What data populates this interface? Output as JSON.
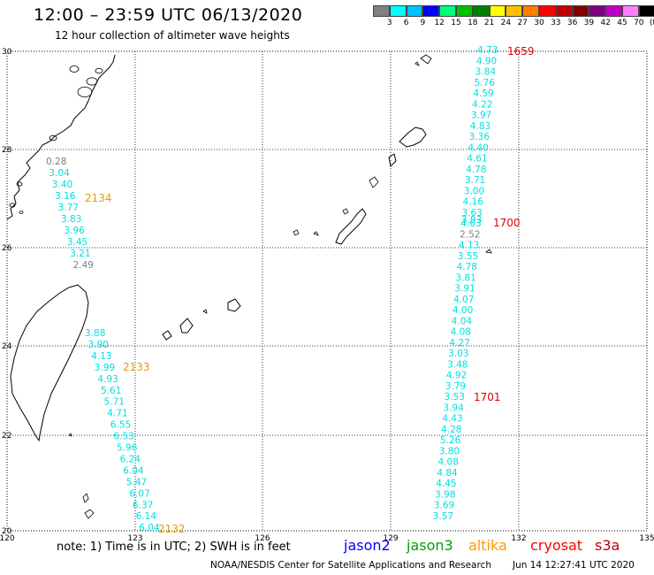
{
  "header": {
    "title": "12:00 – 23:59 UTC 06/13/2020",
    "subtitle": "12 hour collection of altimeter wave heights"
  },
  "legend": {
    "colors": [
      "#808080",
      "#00ffff",
      "#00c0ff",
      "#0000ff",
      "#00ff80",
      "#00c000",
      "#008000",
      "#ffff00",
      "#ffc000",
      "#ff8000",
      "#ff0000",
      "#c00000",
      "#800000",
      "#800080",
      "#c000c0",
      "#ff80ff",
      "#000000"
    ],
    "labels": [
      "3",
      "6",
      "9",
      "12",
      "15",
      "18",
      "21",
      "24",
      "27",
      "30",
      "33",
      "36",
      "39",
      "42",
      "45",
      "70",
      "(ft)"
    ]
  },
  "axes": {
    "lon_ticks": [
      "120",
      "123",
      "126",
      "129",
      "132",
      "135"
    ],
    "lat_ticks": [
      "30",
      "28",
      "26",
      "24",
      "22",
      "20"
    ]
  },
  "colors": {
    "cyan": "#00e0e0",
    "gray": "#808080",
    "orange": "#e89a00",
    "red": "#e00000"
  },
  "tracks": [
    {
      "name": "track-west-north",
      "time": "2134",
      "time_color": "orange",
      "points": [
        {
          "v": "0.28",
          "c": "gray"
        },
        {
          "v": "3.04",
          "c": "cyan"
        },
        {
          "v": "3.40",
          "c": "cyan"
        },
        {
          "v": "3.16",
          "c": "cyan"
        },
        {
          "v": "3.77",
          "c": "cyan"
        },
        {
          "v": "3.83",
          "c": "cyan"
        },
        {
          "v": "3.96",
          "c": "cyan"
        },
        {
          "v": "3.45",
          "c": "cyan"
        },
        {
          "v": "3.21",
          "c": "cyan"
        },
        {
          "v": "2.49",
          "c": "gray"
        }
      ]
    },
    {
      "name": "track-west-south",
      "time1": "2133",
      "time2": "2132",
      "time_color": "orange",
      "points": [
        {
          "v": "3.88",
          "c": "cyan"
        },
        {
          "v": "3.90",
          "c": "cyan"
        },
        {
          "v": "4.13",
          "c": "cyan"
        },
        {
          "v": "3.99",
          "c": "cyan"
        },
        {
          "v": "4.93",
          "c": "cyan"
        },
        {
          "v": "5.61",
          "c": "cyan"
        },
        {
          "v": "5.71",
          "c": "cyan"
        },
        {
          "v": "4.71",
          "c": "cyan"
        },
        {
          "v": "6.55",
          "c": "cyan"
        },
        {
          "v": "6.53",
          "c": "cyan"
        },
        {
          "v": "5.96",
          "c": "cyan"
        },
        {
          "v": "6.24",
          "c": "cyan"
        },
        {
          "v": "6.04",
          "c": "cyan"
        },
        {
          "v": "5.47",
          "c": "cyan"
        },
        {
          "v": "6.07",
          "c": "cyan"
        },
        {
          "v": "6.37",
          "c": "cyan"
        },
        {
          "v": "6.14",
          "c": "cyan"
        },
        {
          "v": "6.04",
          "c": "cyan"
        }
      ]
    },
    {
      "name": "track-east",
      "time1": "1659",
      "time2": "1700",
      "time3": "1701",
      "time_color": "red",
      "points": [
        {
          "v": "4.73",
          "c": "cyan"
        },
        {
          "v": "4.90",
          "c": "cyan"
        },
        {
          "v": "3.84",
          "c": "cyan"
        },
        {
          "v": "5.76",
          "c": "cyan"
        },
        {
          "v": "4.59",
          "c": "cyan"
        },
        {
          "v": "4.22",
          "c": "cyan"
        },
        {
          "v": "3.97",
          "c": "cyan"
        },
        {
          "v": "4.83",
          "c": "cyan"
        },
        {
          "v": "3.36",
          "c": "cyan"
        },
        {
          "v": "4.40",
          "c": "cyan"
        },
        {
          "v": "4.61",
          "c": "cyan"
        },
        {
          "v": "4.78",
          "c": "cyan"
        },
        {
          "v": "3.71",
          "c": "cyan"
        },
        {
          "v": "3.00",
          "c": "cyan"
        },
        {
          "v": "4.16",
          "c": "cyan"
        },
        {
          "v": "3.63",
          "c": "cyan"
        },
        {
          "v": "4.63",
          "c": "cyan"
        },
        {
          "v": "2.52",
          "c": "gray"
        },
        {
          "v": "4.13",
          "c": "cyan"
        },
        {
          "v": "3.55",
          "c": "cyan"
        },
        {
          "v": "4.78",
          "c": "cyan"
        },
        {
          "v": "3.81",
          "c": "cyan"
        },
        {
          "v": "3.91",
          "c": "cyan"
        },
        {
          "v": "4.07",
          "c": "cyan"
        },
        {
          "v": "4.00",
          "c": "cyan"
        },
        {
          "v": "4.04",
          "c": "cyan"
        },
        {
          "v": "4.08",
          "c": "cyan"
        },
        {
          "v": "4.27",
          "c": "cyan"
        },
        {
          "v": "3.03",
          "c": "cyan"
        },
        {
          "v": "3.48",
          "c": "cyan"
        },
        {
          "v": "4.92",
          "c": "cyan"
        },
        {
          "v": "3.79",
          "c": "cyan"
        },
        {
          "v": "3.53",
          "c": "cyan"
        },
        {
          "v": "3.94",
          "c": "cyan"
        },
        {
          "v": "4.43",
          "c": "cyan"
        },
        {
          "v": "4.28",
          "c": "cyan"
        },
        {
          "v": "5.26",
          "c": "cyan"
        },
        {
          "v": "3.80",
          "c": "cyan"
        },
        {
          "v": "4.08",
          "c": "cyan"
        },
        {
          "v": "4.84",
          "c": "cyan"
        },
        {
          "v": "4.45",
          "c": "cyan"
        },
        {
          "v": "3.98",
          "c": "cyan"
        },
        {
          "v": "3.69",
          "c": "cyan"
        },
        {
          "v": "3.57",
          "c": "cyan"
        }
      ],
      "extra_overlap": "3.93"
    }
  ],
  "footer": {
    "note": "note: 1) Time is in UTC; 2) SWH is in feet",
    "satellites": [
      {
        "name": "jason2",
        "color": "#0000ff"
      },
      {
        "name": "jason3",
        "color": "#00a000"
      },
      {
        "name": "altika",
        "color": "#ff9900"
      },
      {
        "name": "cryosat",
        "color": "#ff0000"
      },
      {
        "name": "s3a",
        "color": "#c00000"
      }
    ],
    "credit": "NOAA/NESDIS Center for Satellite Applications and Research",
    "stamp": "Jun 14 12:27:41 UTC 2020"
  }
}
